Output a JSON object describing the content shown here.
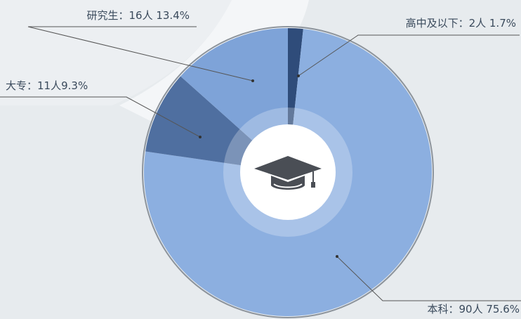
{
  "chart_data": {
    "type": "pie",
    "categories": [
      "高中及以下：",
      "本科：",
      "大专：",
      "研究生："
    ],
    "values": [
      1.7,
      75.6,
      9.3,
      13.4
    ],
    "value_labels": [
      "2人 1.7%",
      "90人 75.6%",
      "11人9.3%",
      "16人 13.4%"
    ],
    "colors": [
      "#2f4c7a",
      "#8cafe0",
      "#4f6fa0",
      "#7ea3d8"
    ]
  }
}
